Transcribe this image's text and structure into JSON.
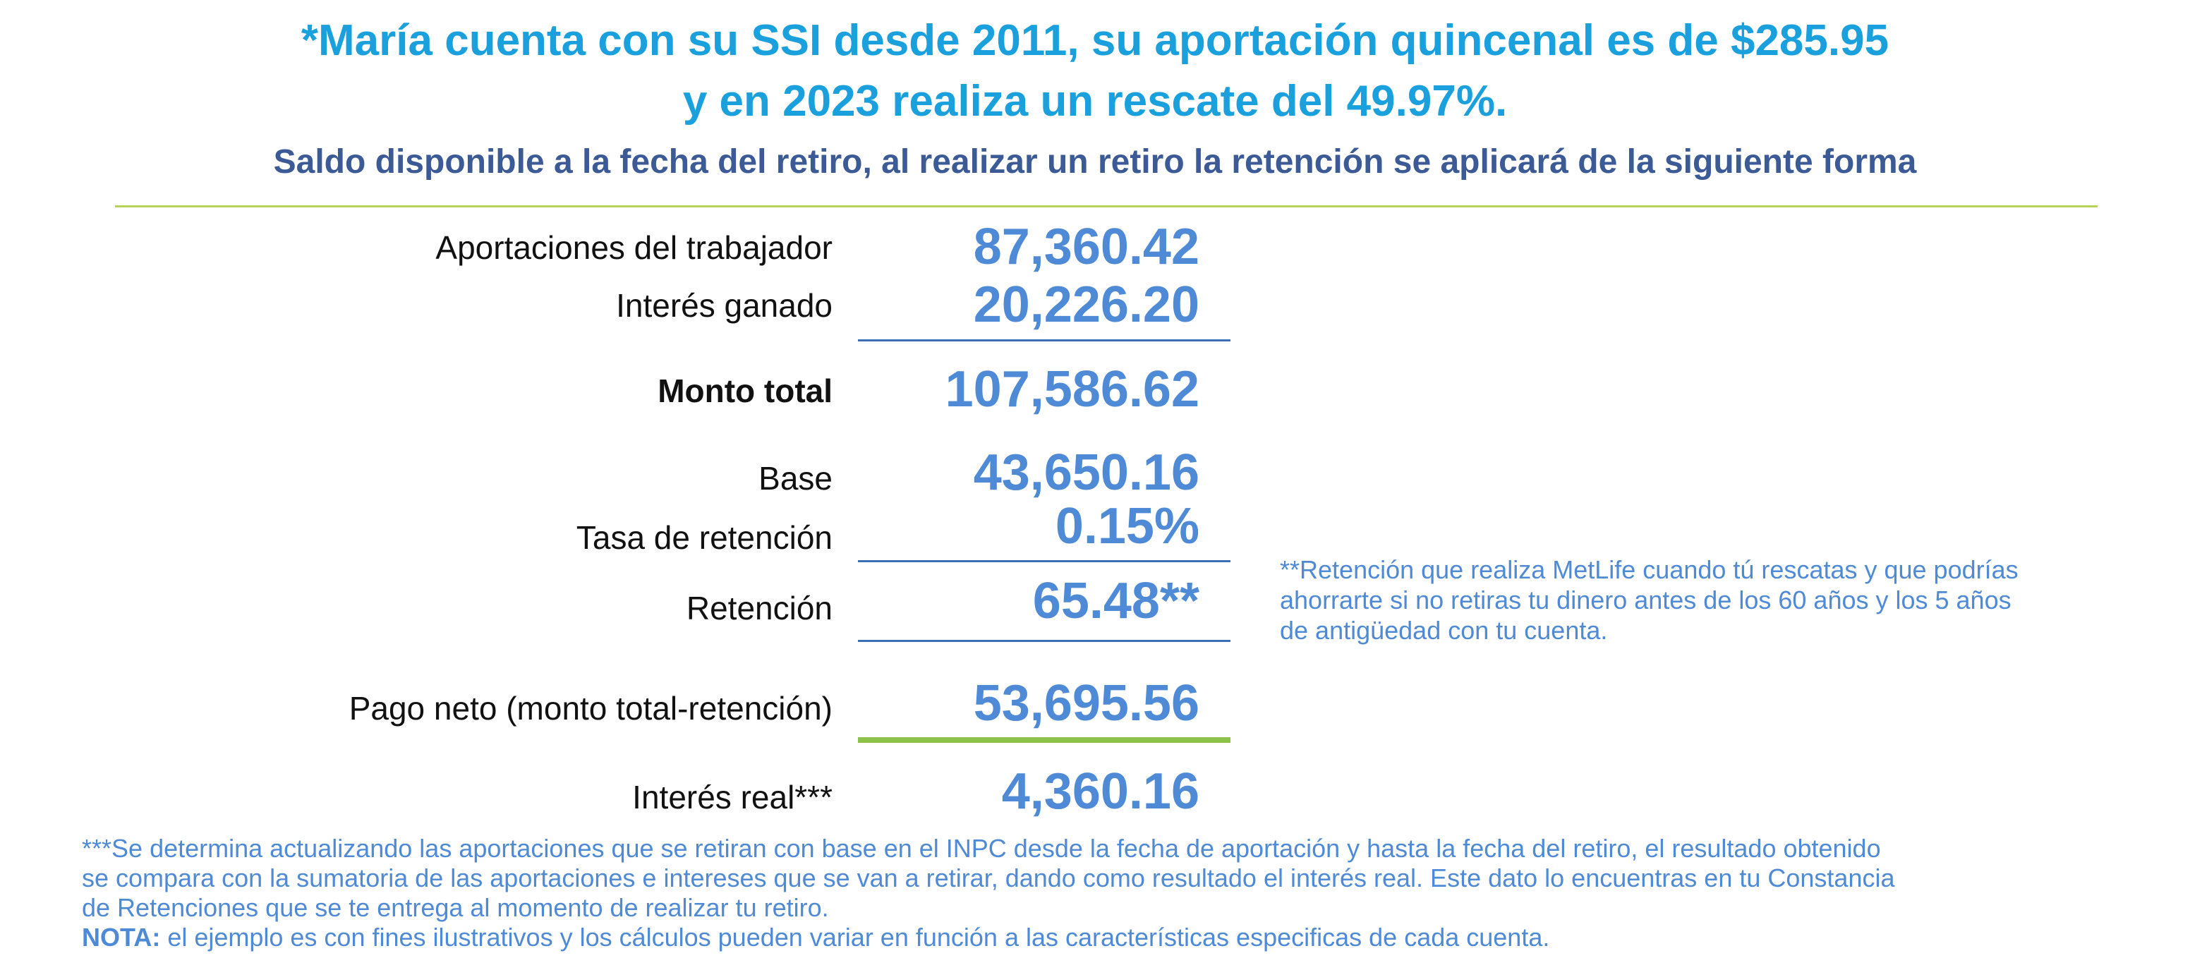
{
  "header": {
    "title_line1": "*María cuenta con su SSI desde 2011, su aportación quincenal es de $285.95",
    "title_line2": "y en 2023 realiza un rescate del 49.97%.",
    "subtitle": "Saldo disponible a la fecha del retiro, al realizar un retiro la retención se aplicará de la siguiente forma"
  },
  "table": {
    "rows": [
      {
        "label": "Aportaciones del trabajador",
        "value": "87,360.42"
      },
      {
        "label": "Interés ganado",
        "value": "20,226.20"
      },
      {
        "label": "Monto total",
        "value": "107,586.62"
      },
      {
        "label": "Base",
        "value": "43,650.16"
      },
      {
        "label": "Tasa de retención",
        "value": "0.15%"
      },
      {
        "label": "Retención",
        "value": "65.48**"
      },
      {
        "label": "Pago neto (monto total-retención)",
        "value": "53,695.56"
      },
      {
        "label": "Interés real***",
        "value": "4,360.16"
      }
    ]
  },
  "side_note": {
    "line1": "**Retención que realiza MetLife cuando tú rescatas  y que podrías",
    "line2": "ahorrarte si no retiras tu dinero antes de los 60 años y los 5 años",
    "line3": "de antigüedad con tu cuenta."
  },
  "footnote": {
    "line1": "***Se determina actualizando  las aportaciones que se retiran con base en el INPC desde la fecha de aportación y hasta la fecha del retiro, el resultado obtenido",
    "line2": "se compara con la sumatoria de las aportaciones e intereses que se van a retirar, dando como resultado el interés real. Este dato lo encuentras en tu Constancia",
    "line3": "de Retenciones que se te entrega al momento de realizar tu retiro.",
    "nota_label": "NOTA:",
    "nota_text": " el ejemplo es con fines ilustrativos y los cálculos pueden variar en función a las características especificas de cada cuenta."
  },
  "colors": {
    "title": "#1aa0dd",
    "subtitle": "#3c5a96",
    "values": "#4f8ad6",
    "accent_green": "#8cc14a",
    "rule_blue": "#3a6fb5"
  }
}
